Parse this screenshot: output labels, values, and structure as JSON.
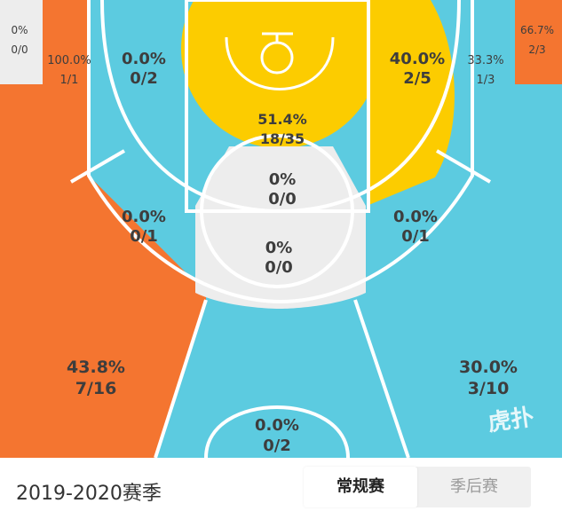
{
  "colors": {
    "hot": "#f47530",
    "cold": "#5ccbe0",
    "neutral": "#ededed",
    "warm": "#fccc00",
    "court_line": "#ffffff",
    "text": "#3d3d3d"
  },
  "zones": {
    "corner_left": {
      "pct": "0%",
      "ratio": "0/0"
    },
    "corner_right": {
      "pct": "66.7%",
      "ratio": "2/3"
    },
    "three_left_wing": {
      "pct": "100.0%",
      "ratio": "1/1"
    },
    "three_right_wing": {
      "pct": "33.3%",
      "ratio": "1/3"
    },
    "mid_left_baseline": {
      "pct": "0.0%",
      "ratio": "0/2"
    },
    "restricted_area": {
      "pct": "51.4%",
      "ratio": "18/35"
    },
    "mid_right_baseline": {
      "pct": "40.0%",
      "ratio": "2/5"
    },
    "paint_center": {
      "pct": "0%",
      "ratio": "0/0"
    },
    "mid_left_elbow": {
      "pct": "0.0%",
      "ratio": "0/1"
    },
    "mid_right_elbow": {
      "pct": "0.0%",
      "ratio": "0/1"
    },
    "free_throw_top": {
      "pct": "0%",
      "ratio": "0/0"
    },
    "three_left": {
      "pct": "43.8%",
      "ratio": "7/16"
    },
    "three_right": {
      "pct": "30.0%",
      "ratio": "3/10"
    },
    "three_top": {
      "pct": "0.0%",
      "ratio": "0/2"
    }
  },
  "watermark": "虎扑",
  "footer": {
    "season": "2019-2020赛季",
    "tabs": {
      "regular": "常规赛",
      "playoffs": "季后赛"
    },
    "active_tab": "regular"
  }
}
